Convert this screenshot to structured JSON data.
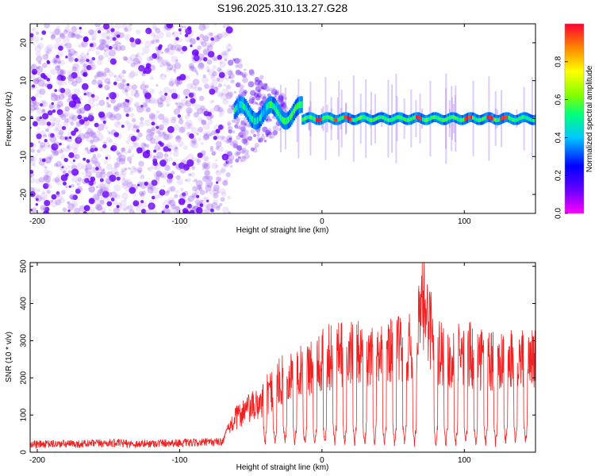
{
  "title": "S196.2025.310.13.27.G28",
  "colors": {
    "spec_noise": "#7a1fe6",
    "snr_line": "#ee2222",
    "colorbar": [
      "#ff00ff",
      "#6a00ff",
      "#0000ff",
      "#00c8ff",
      "#00ff80",
      "#80ff00",
      "#ffff00",
      "#ff8000",
      "#ff0033"
    ]
  },
  "chart_data": [
    {
      "type": "heatmap",
      "title": "S196.2025.310.13.27.G28",
      "xlabel": "Height of straight line (km)",
      "ylabel": "Frequency (Hz)",
      "xlim": [
        -205,
        150
      ],
      "ylim": [
        -25,
        25
      ],
      "xticks": [
        -200,
        -100,
        0,
        100
      ],
      "xtick_labels": [
        "-200",
        "-100",
        "0",
        "100"
      ],
      "yticks": [
        20,
        10,
        0,
        -10,
        -20
      ],
      "ytick_labels": [
        "20",
        "10",
        "0",
        "-10",
        "-20"
      ],
      "noise_region_x": [
        -205,
        -65
      ],
      "signal_center_freq_hz": 0,
      "peak_segments_km": [
        [
          -5,
          0
        ],
        [
          8,
          10
        ],
        [
          15,
          20
        ],
        [
          65,
          70
        ],
        [
          100,
          105
        ],
        [
          115,
          120
        ],
        [
          125,
          130
        ]
      ],
      "colorbar": {
        "label": "Normalized spectral amplitude",
        "range": [
          0,
          1
        ],
        "ticks": [
          0.0,
          0.2,
          0.4,
          0.6,
          0.8
        ],
        "tick_labels": [
          "0.0",
          "0.2",
          "0.4",
          "0.6",
          "0.8"
        ]
      }
    },
    {
      "type": "line",
      "xlabel": "Height of straight line (km)",
      "ylabel": "SNR (10 * v/v)",
      "xlim": [
        -205,
        150
      ],
      "ylim": [
        0,
        510
      ],
      "xticks": [
        -200,
        -100,
        0,
        100
      ],
      "xtick_labels": [
        "-200",
        "-100",
        "0",
        "100"
      ],
      "yticks": [
        0,
        100,
        200,
        300,
        400,
        500
      ],
      "ytick_labels": [
        "0",
        "100",
        "200",
        "300",
        "400",
        "500"
      ],
      "series": [
        {
          "name": "SNR",
          "x": [
            -205,
            -190,
            -170,
            -150,
            -130,
            -110,
            -90,
            -70,
            -62,
            -55,
            -45,
            -35,
            -25,
            -15,
            -5,
            5,
            15,
            25,
            35,
            45,
            55,
            65,
            72,
            80,
            90,
            100,
            110,
            120,
            130,
            140,
            150
          ],
          "values": [
            20,
            22,
            22,
            25,
            22,
            25,
            25,
            28,
            100,
            130,
            150,
            200,
            240,
            260,
            280,
            300,
            305,
            310,
            315,
            310,
            320,
            330,
            480,
            330,
            300,
            310,
            300,
            290,
            290,
            290,
            300
          ],
          "dropout_positions_km": [
            -40,
            -33,
            -26,
            -19,
            -12,
            -5,
            2,
            9,
            16,
            23,
            30,
            37,
            44,
            51,
            58,
            65,
            80,
            87,
            94,
            101,
            108,
            115,
            122,
            129,
            136,
            143
          ]
        }
      ]
    }
  ]
}
